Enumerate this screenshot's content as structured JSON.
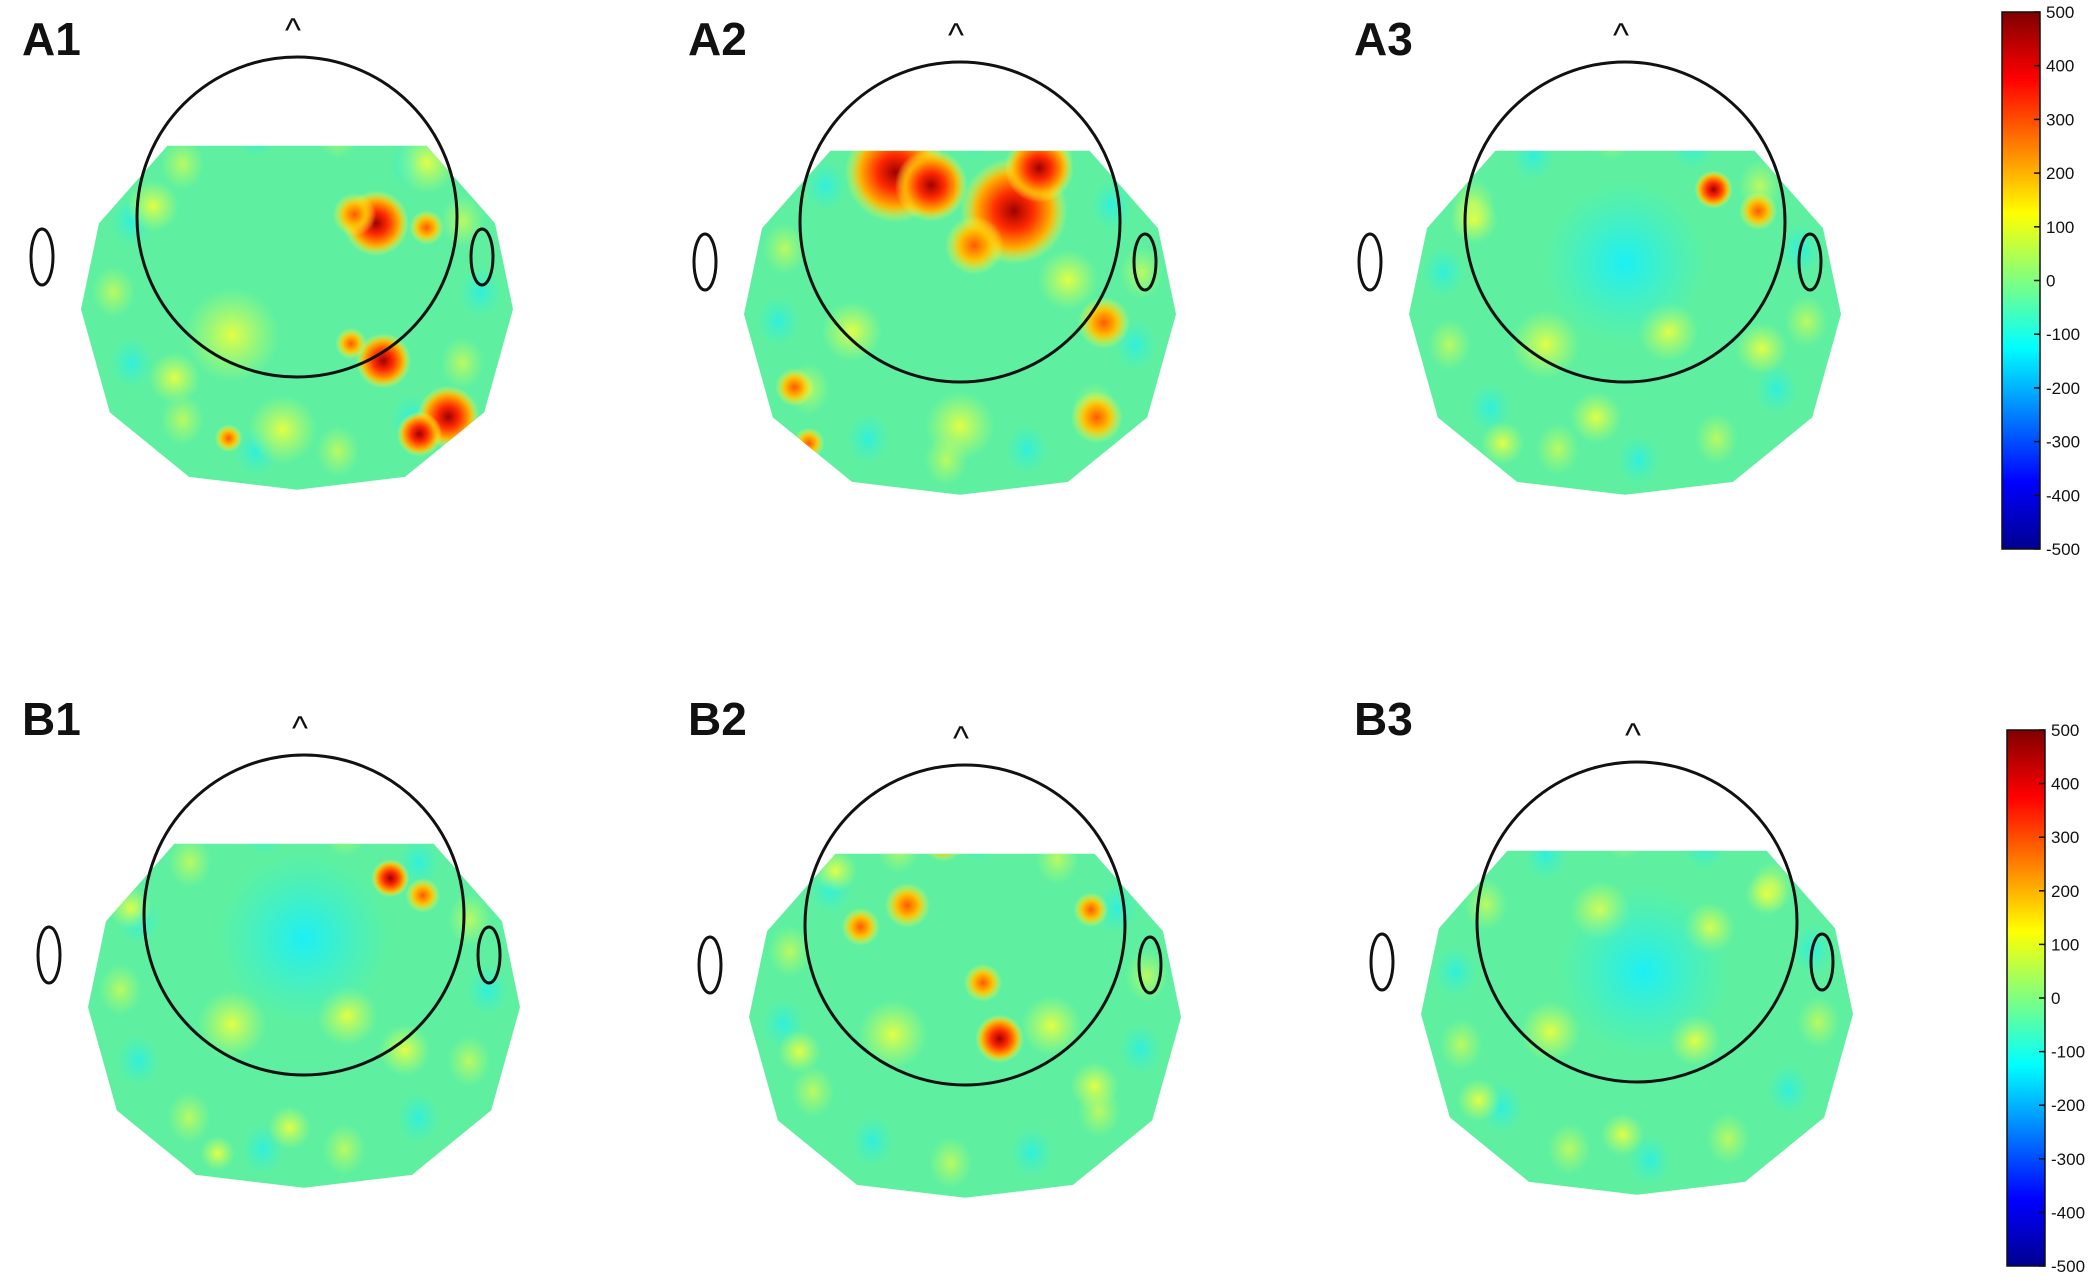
{
  "figure": {
    "panels": [
      {
        "id": "A1",
        "label": "A1"
      },
      {
        "id": "A2",
        "label": "A2"
      },
      {
        "id": "A3",
        "label": "A3"
      },
      {
        "id": "B1",
        "label": "B1"
      },
      {
        "id": "B2",
        "label": "B2"
      },
      {
        "id": "B3",
        "label": "B3"
      }
    ],
    "nose_marker": "^",
    "colorbar_top": {
      "ticks": [
        "500",
        "400",
        "300",
        "200",
        "100",
        "0",
        "-100",
        "-200",
        "-300",
        "-400",
        "-500"
      ]
    },
    "colorbar_bottom": {
      "ticks": [
        "500",
        "400",
        "300",
        "200",
        "100",
        "0",
        "-100",
        "-200",
        "-300",
        "-400",
        "-500"
      ]
    },
    "colors": {
      "background_field": "#5ef0a0",
      "outline": "#111111",
      "colormap": "jet"
    }
  }
}
